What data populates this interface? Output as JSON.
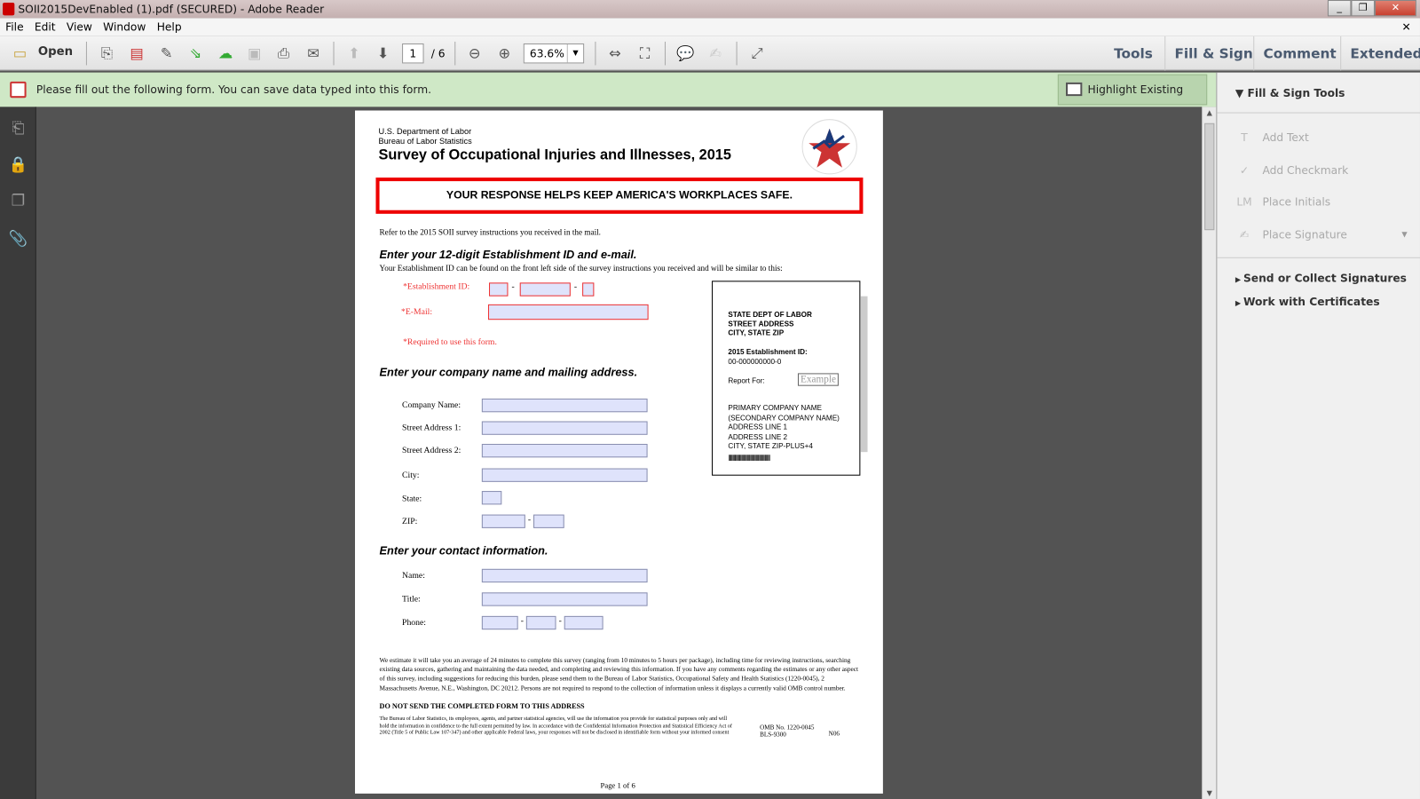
{
  "window": {
    "title": "SOII2015DevEnabled (1).pdf (SECURED) - Adobe Reader",
    "minimize": "_",
    "restore": "❐",
    "close": "✕",
    "doc_close": "✕"
  },
  "menu": [
    "File",
    "Edit",
    "View",
    "Window",
    "Help"
  ],
  "toolbar": {
    "open": "Open",
    "page_current": "1",
    "page_total": "/ 6",
    "zoom": "63.6%",
    "tabs": [
      "Tools",
      "Fill & Sign",
      "Comment",
      "Extended"
    ]
  },
  "notification": {
    "text": "Please fill out the following form. You can save data typed into this form.",
    "button": "Highlight Existing Fields"
  },
  "right_pane": {
    "section": "Fill & Sign Tools",
    "tools": [
      "Add Text",
      "Add Checkmark",
      "Place Initials",
      "Place Signature"
    ],
    "groups": [
      "Send or Collect Signatures",
      "Work with Certificates"
    ]
  },
  "doc": {
    "dept": "U.S. Department of Labor",
    "bureau": "Bureau of Labor Statistics",
    "title": "Survey of Occupational Injuries and Illnesses, 2015",
    "seal_text": "U.S. BUREAU OF LABOR STATISTICS",
    "banner": "YOUR RESPONSE HELPS KEEP AMERICA'S WORKPLACES SAFE.",
    "refer": "Refer to the 2015 SOII survey instructions you received in the mail.",
    "sec1": "Enter your 12-digit Establishment ID and e-mail.",
    "sec1_sub": "Your Establishment ID can be found on the front left side of the survey instructions you received and will be similar to this:",
    "est_label": "*Establishment ID:",
    "email_label": "*E-Mail:",
    "required_note": "*Required to use this form.",
    "dash": "-",
    "sec2": "Enter your company name and mailing address.",
    "address_fields": [
      "Company Name:",
      "Street Address 1:",
      "Street Address 2:",
      "City:",
      "State:",
      "ZIP:"
    ],
    "sec3": "Enter your contact information.",
    "contact_fields": [
      "Name:",
      "Title:",
      "Phone:"
    ],
    "example": {
      "l1": "STATE DEPT OF LABOR",
      "l2": "STREET ADDRESS",
      "l3": "CITY, STATE ZIP",
      "id_label": "2015 Establishment ID:",
      "id": "00-000000000-0",
      "report_for": "Report For:",
      "stamp": "Example",
      "c1": "PRIMARY COMPANY NAME",
      "c2": "(SECONDARY COMPANY NAME)",
      "c3": "ADDRESS LINE 1",
      "c4": "ADDRESS LINE 2",
      "c5": "CITY, STATE  ZIP-PLUS+4",
      "barcode": "||||||||||||||||||||||||||||||||||||||||||||||||||||||||"
    },
    "burden": "We estimate it will take you an average of 24 minutes to complete this survey (ranging from 10 minutes to 5 hours per package), including time for reviewing instructions, searching existing data sources, gathering and maintaining the data needed, and completing and reviewing this information.  If you have any comments regarding the estimates or any other aspect of this survey, including suggestions for reducing this burden, please send them to the Bureau of Labor Statistics, Occupational Safety and Health Statistics (1220-0045), 2 Massachusetts Avenue, N.E., Washington, DC 20212.  Persons are not required to respond to the collection of information unless it displays a currently valid OMB control number.",
    "do_not_send": "DO NOT SEND THE COMPLETED FORM TO THIS ADDRESS",
    "confidential": "The Bureau of Labor Statistics, its employees, agents, and partner statistical agencies, will use the information you provide for statistical purposes only and will hold the information in confidence to the full extent permitted by law.  In accordance with the Confidential Information Protection and Statistical Efficiency Act of 2002 (Title 5 of Public Law 107-347) and other applicable Federal laws, your responses will not be disclosed in identifiable form without your informed consent",
    "omb": "OMB No. 1220-0045",
    "bls": "BLS-9300",
    "code": "N06",
    "page_footer": "Page 1 of 6"
  },
  "colors": {
    "notification_bg": "#cfe8c6",
    "required": "#e33333",
    "field_fill": "#dfe3fb",
    "doc_bg": "#535353"
  }
}
